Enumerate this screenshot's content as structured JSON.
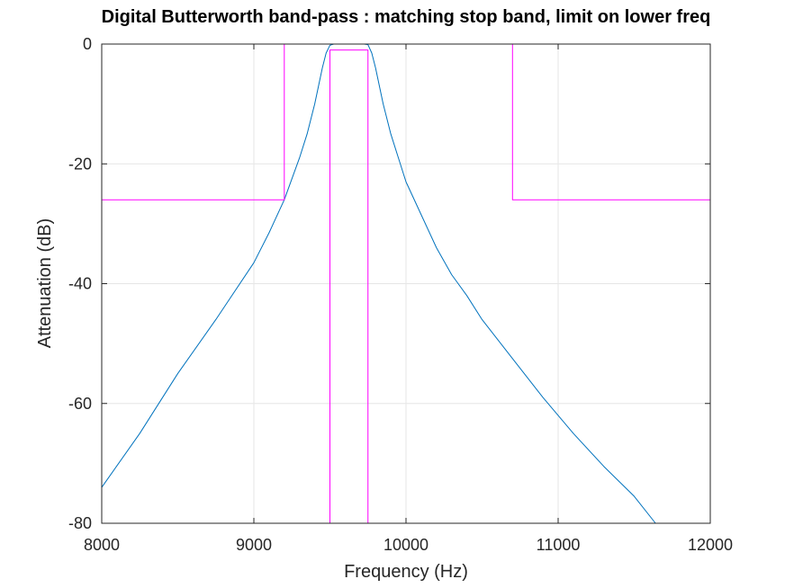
{
  "chart_data": {
    "type": "line",
    "title": "Digital Butterworth band-pass : matching stop band, limit on lower freq",
    "xlabel": "Frequency (Hz)",
    "ylabel": "Attenuation (dB)",
    "xlim": [
      8000,
      12000
    ],
    "ylim": [
      -80,
      0
    ],
    "xticks": [
      8000,
      9000,
      10000,
      11000,
      12000
    ],
    "xtick_labels": [
      "8000",
      "9000",
      "10000",
      "11000",
      "12000"
    ],
    "yticks": [
      -80,
      -60,
      -40,
      -20,
      0
    ],
    "ytick_labels": [
      "-80",
      "-60",
      "-40",
      "-20",
      "0"
    ],
    "grid": true,
    "series": [
      {
        "color": "#0072bd",
        "x": [
          8000,
          8250,
          8500,
          8750,
          9000,
          9100,
          9200,
          9300,
          9350,
          9400,
          9450,
          9475,
          9500,
          9525,
          9550,
          9600,
          9650,
          9700,
          9725,
          9750,
          9775,
          9800,
          9850,
          9900,
          9950,
          10000,
          10100,
          10200,
          10300,
          10400,
          10500,
          10700,
          10900,
          11100,
          11300,
          11500,
          11640
        ],
        "y": [
          -74,
          -65,
          -55,
          -46,
          -36.5,
          -31.5,
          -26,
          -19,
          -15,
          -10,
          -4,
          -1.5,
          -0.2,
          0,
          0,
          0,
          0,
          0,
          0,
          -0.1,
          -1.5,
          -4,
          -10,
          -15,
          -19,
          -23,
          -28.5,
          -34,
          -38.5,
          -42,
          -46,
          -52.5,
          -59,
          -65,
          -70.5,
          -75.5,
          -80
        ]
      },
      {
        "color": "#ff00ff",
        "x": [
          8000,
          9200,
          9200,
          10700,
          10700,
          12000
        ],
        "y": [
          -26,
          -26,
          0,
          0,
          -26,
          -26
        ]
      },
      {
        "color": "#ff00ff",
        "x": [
          9500,
          9500,
          9750,
          9750
        ],
        "y": [
          -80,
          -1,
          -1,
          -80
        ]
      }
    ]
  }
}
